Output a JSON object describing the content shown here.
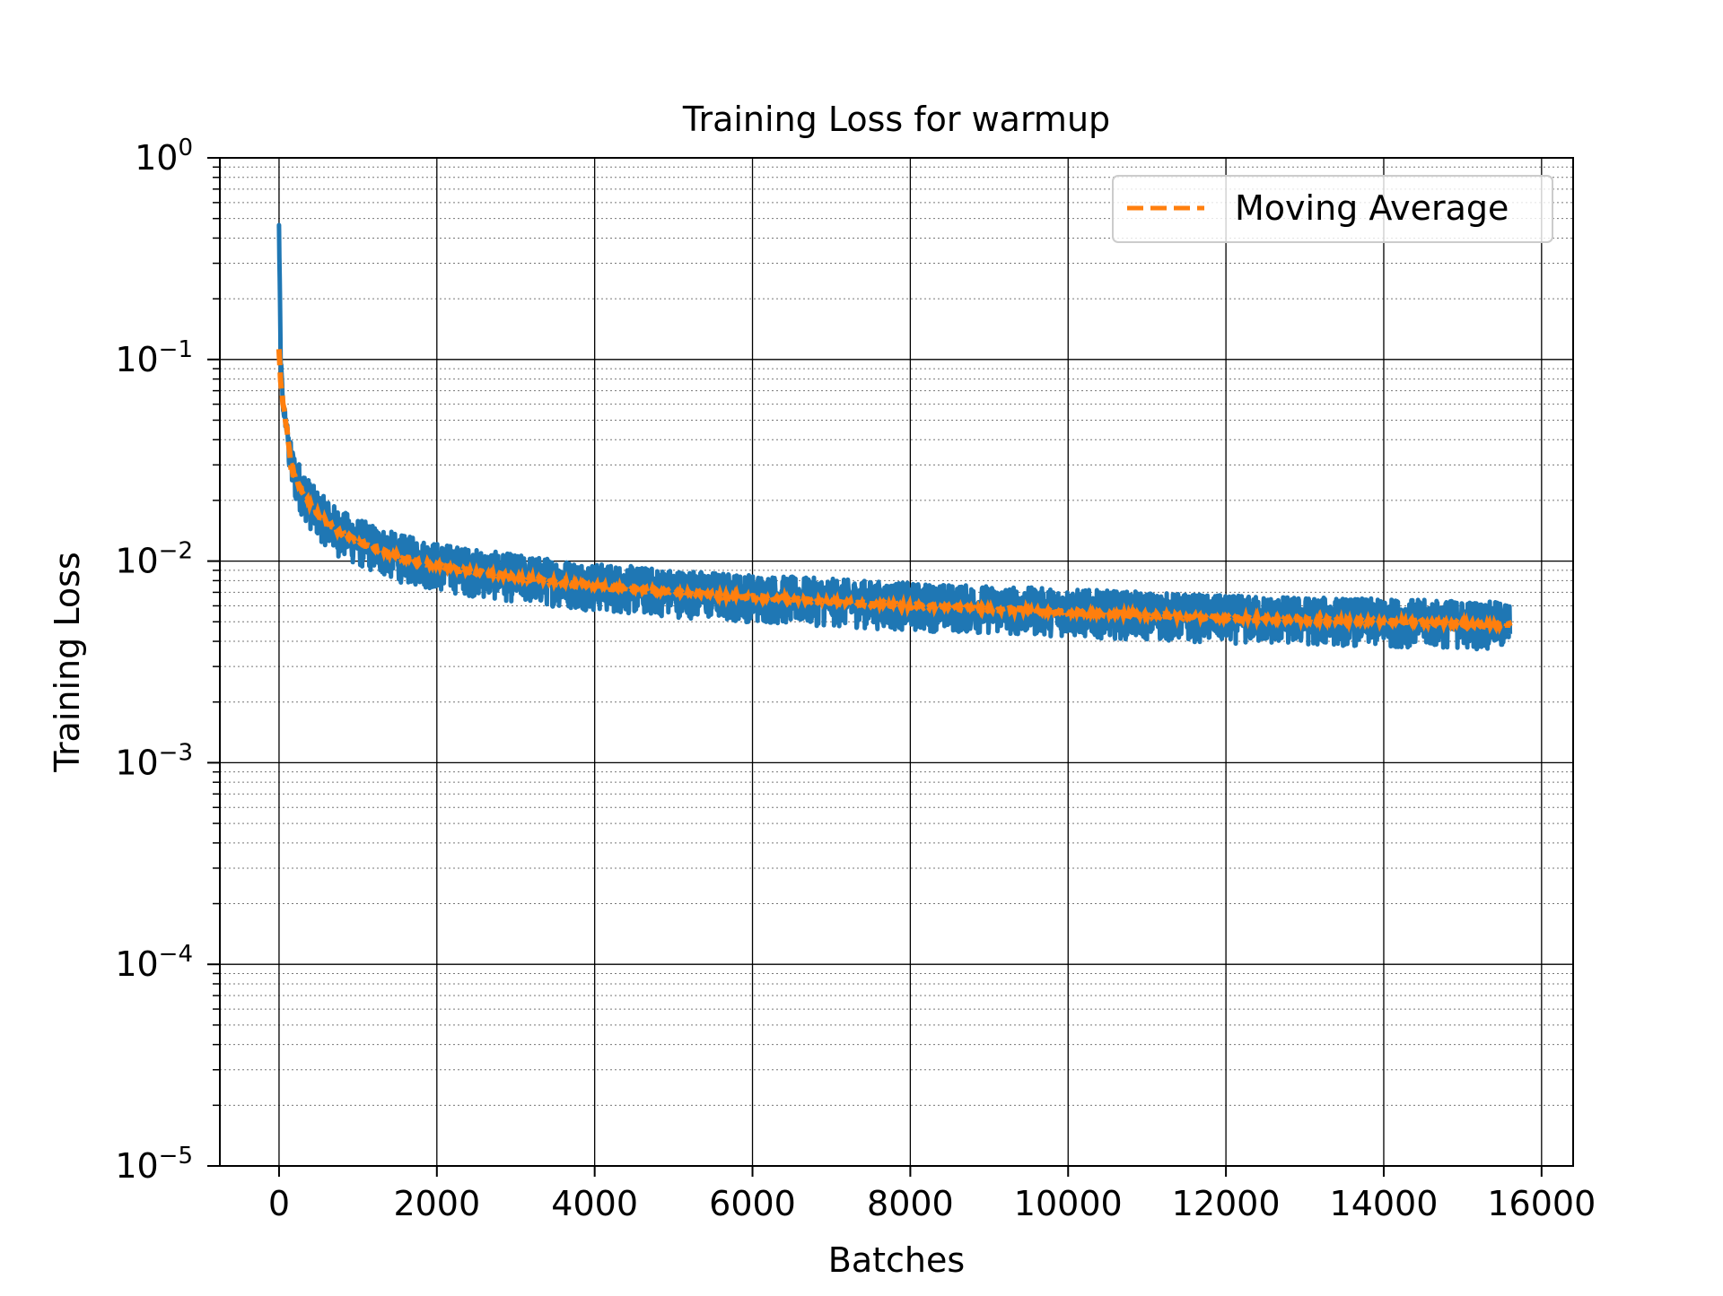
{
  "chart_data": {
    "type": "line",
    "title": "Training Loss for warmup",
    "xlabel": "Batches",
    "ylabel": "Training Loss",
    "xlim": [
      -750,
      16400
    ],
    "ylim": [
      1e-05,
      1
    ],
    "yscale": "log",
    "grid": true,
    "legend_position": "top-right",
    "x_ticks": [
      0,
      2000,
      4000,
      6000,
      8000,
      10000,
      12000,
      14000,
      16000
    ],
    "x_tick_labels": [
      "0",
      "2000",
      "4000",
      "6000",
      "8000",
      "10000",
      "12000",
      "14000",
      "16000"
    ],
    "y_ticks": [
      {
        "value": 1,
        "base": "10",
        "exponent": "0"
      },
      {
        "value": 0.1,
        "base": "10",
        "exponent": "−1"
      },
      {
        "value": 0.01,
        "base": "10",
        "exponent": "−2"
      },
      {
        "value": 0.001,
        "base": "10",
        "exponent": "−3"
      },
      {
        "value": 0.0001,
        "base": "10",
        "exponent": "−4"
      },
      {
        "value": 1e-05,
        "base": "10",
        "exponent": "−5"
      }
    ],
    "series": [
      {
        "name": "",
        "role": "raw-loss",
        "color": "#1f77b4",
        "x": [
          0,
          20,
          50,
          100,
          150,
          200,
          300,
          400,
          500,
          750,
          1000,
          1500,
          2000,
          2500,
          3000,
          3500,
          4000,
          5000,
          6000,
          7000,
          8000,
          9000,
          10000,
          11000,
          12000,
          13000,
          14000,
          15000,
          15600
        ],
        "y": [
          0.45,
          0.1,
          0.06,
          0.045,
          0.03,
          0.026,
          0.022,
          0.019,
          0.017,
          0.014,
          0.0125,
          0.0105,
          0.0095,
          0.0088,
          0.0083,
          0.0079,
          0.0075,
          0.007,
          0.0066,
          0.0063,
          0.006,
          0.0058,
          0.0056,
          0.0054,
          0.0052,
          0.0051,
          0.005,
          0.0049,
          0.0048
        ],
        "noise_band": [
          0.75,
          1.3
        ]
      },
      {
        "name": "Moving Average",
        "color": "#ff7f0e",
        "dash": "dashed",
        "x": [
          0,
          20,
          50,
          100,
          150,
          200,
          300,
          400,
          500,
          750,
          1000,
          1500,
          2000,
          2500,
          3000,
          3500,
          4000,
          5000,
          6000,
          7000,
          8000,
          9000,
          10000,
          11000,
          12000,
          13000,
          14000,
          15000,
          15600
        ],
        "y": [
          0.11,
          0.08,
          0.06,
          0.045,
          0.03,
          0.026,
          0.022,
          0.019,
          0.017,
          0.014,
          0.0125,
          0.0105,
          0.0095,
          0.0088,
          0.0083,
          0.0079,
          0.0075,
          0.007,
          0.0066,
          0.0063,
          0.006,
          0.0058,
          0.0056,
          0.0054,
          0.0052,
          0.0051,
          0.005,
          0.0049,
          0.0048
        ]
      }
    ],
    "legend": [
      {
        "label": "Moving Average",
        "color": "#ff7f0e",
        "dash": "dashed"
      }
    ]
  }
}
